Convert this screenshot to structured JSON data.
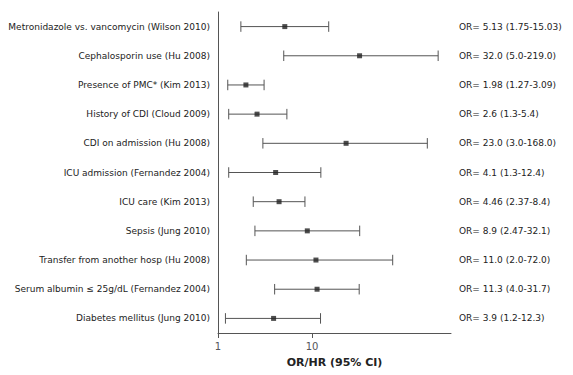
{
  "chart_data": {
    "type": "forest",
    "xlabel": "OR/HR (95% CI)",
    "categories": [
      "Metronidazole vs. vancomycin (Wilson 2010)",
      "Cephalosporin use (Hu 2008)",
      "Presence of PMC* (Kim 2013)",
      "History of CDI (Cloud 2009)",
      "CDI on admission (Hu 2008)",
      "ICU admission (Fernandez 2004)",
      "ICU care (Kim 2013)",
      "Sepsis (Jung 2010)",
      "Transfer from another hosp (Hu 2008)",
      "Serum albumin ≤ 25g/dL (Fernandez 2004)",
      "Diabetes mellitus (Jung 2010)"
    ],
    "values": [
      5.13,
      32.0,
      1.98,
      2.6,
      23.0,
      4.1,
      4.46,
      8.9,
      11.0,
      11.3,
      3.9
    ],
    "ci_low": [
      1.75,
      5.0,
      1.27,
      1.3,
      3.0,
      1.3,
      2.37,
      2.47,
      2.0,
      4.0,
      1.2
    ],
    "ci_high": [
      15.03,
      219.0,
      3.09,
      5.4,
      168.0,
      12.4,
      8.4,
      32.1,
      72.0,
      31.7,
      12.3
    ],
    "value_labels": [
      "OR= 5.13 (1.75-15.03)",
      "OR= 32.0 (5.0-219.0)",
      "OR= 1.98 (1.27-3.09)",
      "OR= 2.6 (1.3-5.4)",
      "OR= 23.0 (3.0-168.0)",
      "OR= 4.1 (1.3-12.4)",
      "OR= 4.46 (2.37-8.4)",
      "OR= 8.9 (2.47-32.1)",
      "OR= 11.0 (2.0-72.0)",
      "OR= 11.3 (4.0-31.7)",
      "OR= 3.9 (1.2-12.3)"
    ],
    "data_labels": true,
    "color": "#222222",
    "log": "x",
    "xlim": [
      1.0,
      300.0
    ],
    "xticks": [
      1,
      10
    ],
    "grid": false,
    "tick_labels": "x"
  }
}
